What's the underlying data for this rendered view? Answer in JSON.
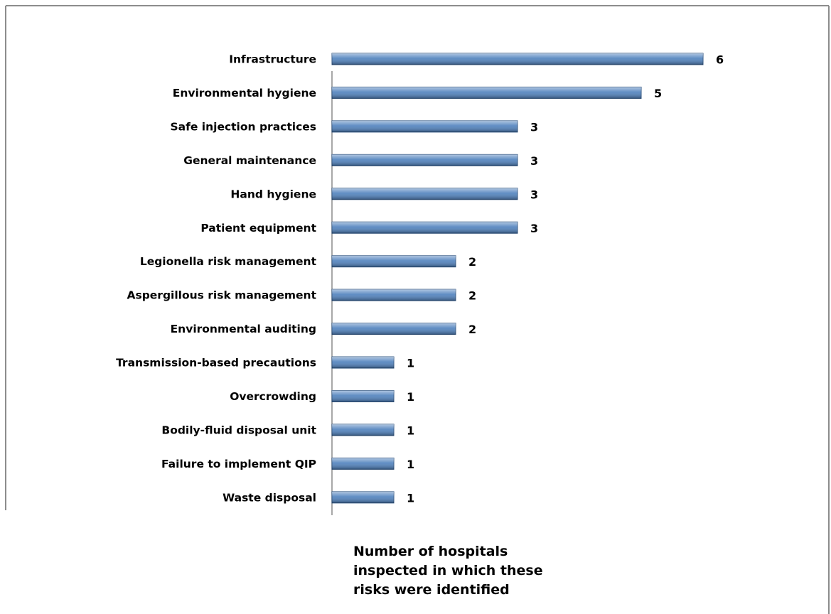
{
  "chart_data": {
    "type": "bar",
    "orientation": "horizontal",
    "categories": [
      "Infrastructure",
      "Environmental hygiene",
      "Safe injection practices",
      "General maintenance",
      "Hand hygiene",
      "Patient equipment",
      "Legionella risk management",
      "Aspergillous risk management",
      "Environmental auditing",
      "Transmission-based precautions",
      "Overcrowding",
      "Bodily-fluid disposal unit",
      "Failure to implement QIP",
      "Waste disposal"
    ],
    "values": [
      6,
      5,
      3,
      3,
      3,
      3,
      2,
      2,
      2,
      1,
      1,
      1,
      1,
      1
    ],
    "color": "#4f81bd",
    "xlim": [
      0,
      6
    ],
    "xlabel": "Number of hospitals inspected in which these risks were identified"
  }
}
